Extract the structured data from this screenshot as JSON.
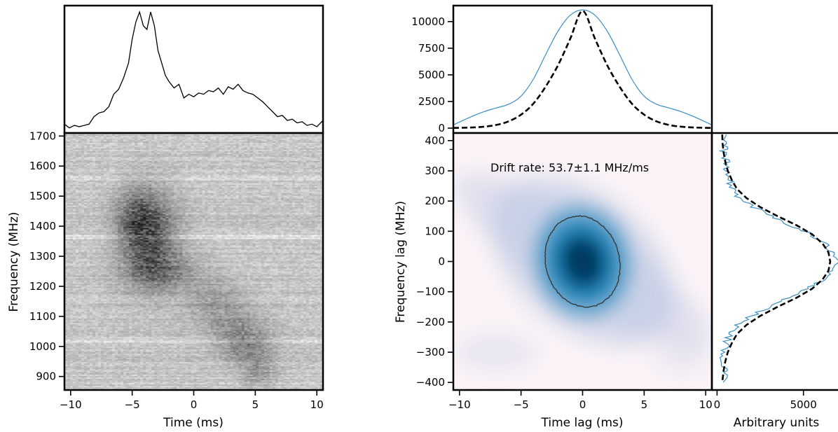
{
  "chart_data": [
    {
      "id": "time-profile",
      "type": "line",
      "title": "",
      "xlabel": "",
      "ylabel": "",
      "xlim": [
        -10.5,
        10.5
      ],
      "ylim": [
        0,
        1
      ],
      "x_ticks": [],
      "y_ticks": [],
      "series": [
        {
          "color": "#000000",
          "x": [
            -10.5,
            -10.1,
            -9.7,
            -9.3,
            -8.9,
            -8.5,
            -8.1,
            -7.7,
            -7.3,
            -6.9,
            -6.5,
            -6.1,
            -5.7,
            -5.3,
            -5.0,
            -4.7,
            -4.4,
            -4.1,
            -3.8,
            -3.5,
            -3.2,
            -2.9,
            -2.6,
            -2.3,
            -2.0,
            -1.6,
            -1.2,
            -0.8,
            -0.4,
            0.0,
            0.4,
            0.8,
            1.2,
            1.6,
            2.0,
            2.4,
            2.8,
            3.2,
            3.6,
            4.0,
            4.4,
            4.8,
            5.2,
            5.6,
            6.0,
            6.4,
            6.8,
            7.2,
            7.6,
            8.0,
            8.4,
            8.8,
            9.2,
            9.6,
            10.0,
            10.5
          ],
          "y": [
            0.06,
            0.03,
            0.05,
            0.04,
            0.05,
            0.06,
            0.12,
            0.15,
            0.16,
            0.2,
            0.3,
            0.34,
            0.43,
            0.55,
            0.74,
            0.88,
            0.96,
            0.85,
            0.82,
            0.96,
            0.85,
            0.65,
            0.55,
            0.45,
            0.4,
            0.35,
            0.38,
            0.27,
            0.3,
            0.28,
            0.31,
            0.3,
            0.33,
            0.32,
            0.35,
            0.3,
            0.36,
            0.34,
            0.38,
            0.33,
            0.31,
            0.3,
            0.27,
            0.24,
            0.2,
            0.16,
            0.12,
            0.13,
            0.09,
            0.1,
            0.07,
            0.08,
            0.05,
            0.06,
            0.04,
            0.09
          ]
        }
      ]
    },
    {
      "id": "dynamic-spectrum",
      "type": "heatmap",
      "title": "",
      "xlabel": "Time (ms)",
      "ylabel": "Frequency (MHz)",
      "xlim": [
        -10.5,
        10.5
      ],
      "ylim": [
        855,
        1710
      ],
      "x_ticks": [
        "−10",
        "−5",
        "0",
        "5",
        "10"
      ],
      "x_tick_values": [
        -10,
        -5,
        0,
        5,
        10
      ],
      "y_ticks": [
        "900",
        "1000",
        "1100",
        "1200",
        "1300",
        "1400",
        "1500",
        "1600",
        "1700"
      ],
      "y_tick_values": [
        900,
        1000,
        1100,
        1200,
        1300,
        1400,
        1500,
        1600,
        1700
      ],
      "colormap": "grayscale",
      "emission_regions": [
        {
          "t": -3.5,
          "f": 1360,
          "t_width": 1.6,
          "f_width": 110,
          "strength": 0.95
        },
        {
          "t": -4.8,
          "f": 1420,
          "t_width": 1.2,
          "f_width": 70,
          "strength": 0.55
        },
        {
          "t": -2.5,
          "f": 1250,
          "t_width": 2.4,
          "f_width": 40,
          "strength": 0.45
        },
        {
          "t": 1.5,
          "f": 1150,
          "t_width": 1.8,
          "f_width": 50,
          "strength": 0.35
        },
        {
          "t": 3.5,
          "f": 1060,
          "t_width": 1.8,
          "f_width": 50,
          "strength": 0.4
        },
        {
          "t": 4.5,
          "f": 990,
          "t_width": 1.5,
          "f_width": 40,
          "strength": 0.45
        },
        {
          "t": 5.2,
          "f": 910,
          "t_width": 1.0,
          "f_width": 30,
          "strength": 0.4
        }
      ]
    },
    {
      "id": "acf-time-projection",
      "type": "line",
      "title": "",
      "xlabel": "",
      "ylabel": "",
      "xlim": [
        -10.5,
        10.5
      ],
      "ylim": [
        0,
        11500
      ],
      "x_ticks": [
        "−10",
        "−5",
        "0",
        "5",
        "10"
      ],
      "x_tick_values": [
        -10,
        -5,
        0,
        5,
        10
      ],
      "y_ticks": [
        "0",
        "2500",
        "5000",
        "7500",
        "10000"
      ],
      "y_tick_values": [
        0,
        2500,
        5000,
        7500,
        10000
      ],
      "series": [
        {
          "color": "#3b8ec2",
          "style": "solid",
          "x": [
            -10.5,
            -9,
            -8,
            -7,
            -6,
            -5,
            -4,
            -3,
            -2,
            -1,
            0,
            1,
            2,
            3,
            4,
            5,
            6,
            7,
            8,
            9,
            10.5
          ],
          "y": [
            300,
            1100,
            1550,
            1900,
            2250,
            3000,
            4600,
            6900,
            9100,
            10600,
            11100,
            10600,
            9100,
            6900,
            4600,
            3000,
            2250,
            1900,
            1550,
            1100,
            300
          ]
        },
        {
          "color": "#000000",
          "style": "dashed",
          "x": [
            -10.5,
            -9,
            -8,
            -7,
            -6,
            -5,
            -4,
            -3,
            -2,
            -1,
            0,
            1,
            2,
            3,
            4,
            5,
            6,
            7,
            8,
            9,
            10.5
          ],
          "y": [
            20,
            60,
            140,
            300,
            640,
            1260,
            2300,
            3900,
            5900,
            8400,
            11000,
            8400,
            5900,
            3900,
            2300,
            1260,
            640,
            300,
            140,
            60,
            20
          ]
        }
      ]
    },
    {
      "id": "acf-2d",
      "type": "heatmap",
      "title": "",
      "xlabel": "Time lag (ms)",
      "ylabel": "Frequency lag (MHz)",
      "xlim": [
        -10.5,
        10.5
      ],
      "ylim": [
        -425,
        425
      ],
      "x_ticks": [
        "−10",
        "−5",
        "0",
        "5",
        "10"
      ],
      "x_tick_values": [
        -10,
        -5,
        0,
        5,
        10
      ],
      "y_ticks": [
        "−400",
        "−300",
        "−200",
        "−100",
        "0",
        "100",
        "200",
        "300",
        "400"
      ],
      "y_tick_values": [
        -400,
        -300,
        -200,
        -100,
        0,
        100,
        200,
        300,
        400
      ],
      "colormap": "PuBu",
      "annotation": "Drift rate: 53.7±1.1 MHz/ms",
      "annotation_position": {
        "x": -7.5,
        "y": 300
      },
      "contour": {
        "center_x": 0,
        "center_y": 0,
        "rx": 3.0,
        "ry": 152,
        "tilt_per_ms": -15,
        "color": "#333333"
      }
    },
    {
      "id": "acf-frequency-projection",
      "type": "line",
      "title": "",
      "xlabel": "Arbitrary units",
      "ylabel": "",
      "xlim": [
        -300,
        7000
      ],
      "ylim": [
        -425,
        425
      ],
      "x_ticks": [
        "0",
        "5000"
      ],
      "x_tick_values": [
        0,
        5000
      ],
      "y_ticks": [],
      "series": [
        {
          "color": "#3b8ec2",
          "style": "solid",
          "x": [
            400,
            500,
            350,
            600,
            450,
            700,
            900,
            1300,
            2100,
            3100,
            4300,
            5400,
            6200,
            6700,
            6900,
            6600,
            6100,
            5300,
            4200,
            3000,
            2000,
            1200,
            800,
            500,
            450,
            300,
            500,
            350
          ],
          "y": [
            420,
            390,
            360,
            330,
            300,
            270,
            240,
            210,
            180,
            150,
            120,
            90,
            60,
            30,
            0,
            -30,
            -60,
            -90,
            -120,
            -150,
            -180,
            -210,
            -240,
            -270,
            -300,
            -330,
            -360,
            -400
          ]
        },
        {
          "color": "#000000",
          "style": "dashed",
          "x": [
            300,
            320,
            380,
            480,
            620,
            850,
            1150,
            1700,
            2500,
            3500,
            4600,
            5500,
            6100,
            6450,
            6550,
            6450,
            6100,
            5500,
            4600,
            3500,
            2500,
            1700,
            1150,
            850,
            620,
            480,
            380,
            300
          ],
          "y": [
            420,
            390,
            360,
            330,
            300,
            270,
            240,
            210,
            180,
            150,
            120,
            90,
            60,
            30,
            0,
            -30,
            -60,
            -90,
            -120,
            -150,
            -180,
            -210,
            -240,
            -270,
            -300,
            -330,
            -360,
            -400
          ]
        }
      ]
    }
  ]
}
